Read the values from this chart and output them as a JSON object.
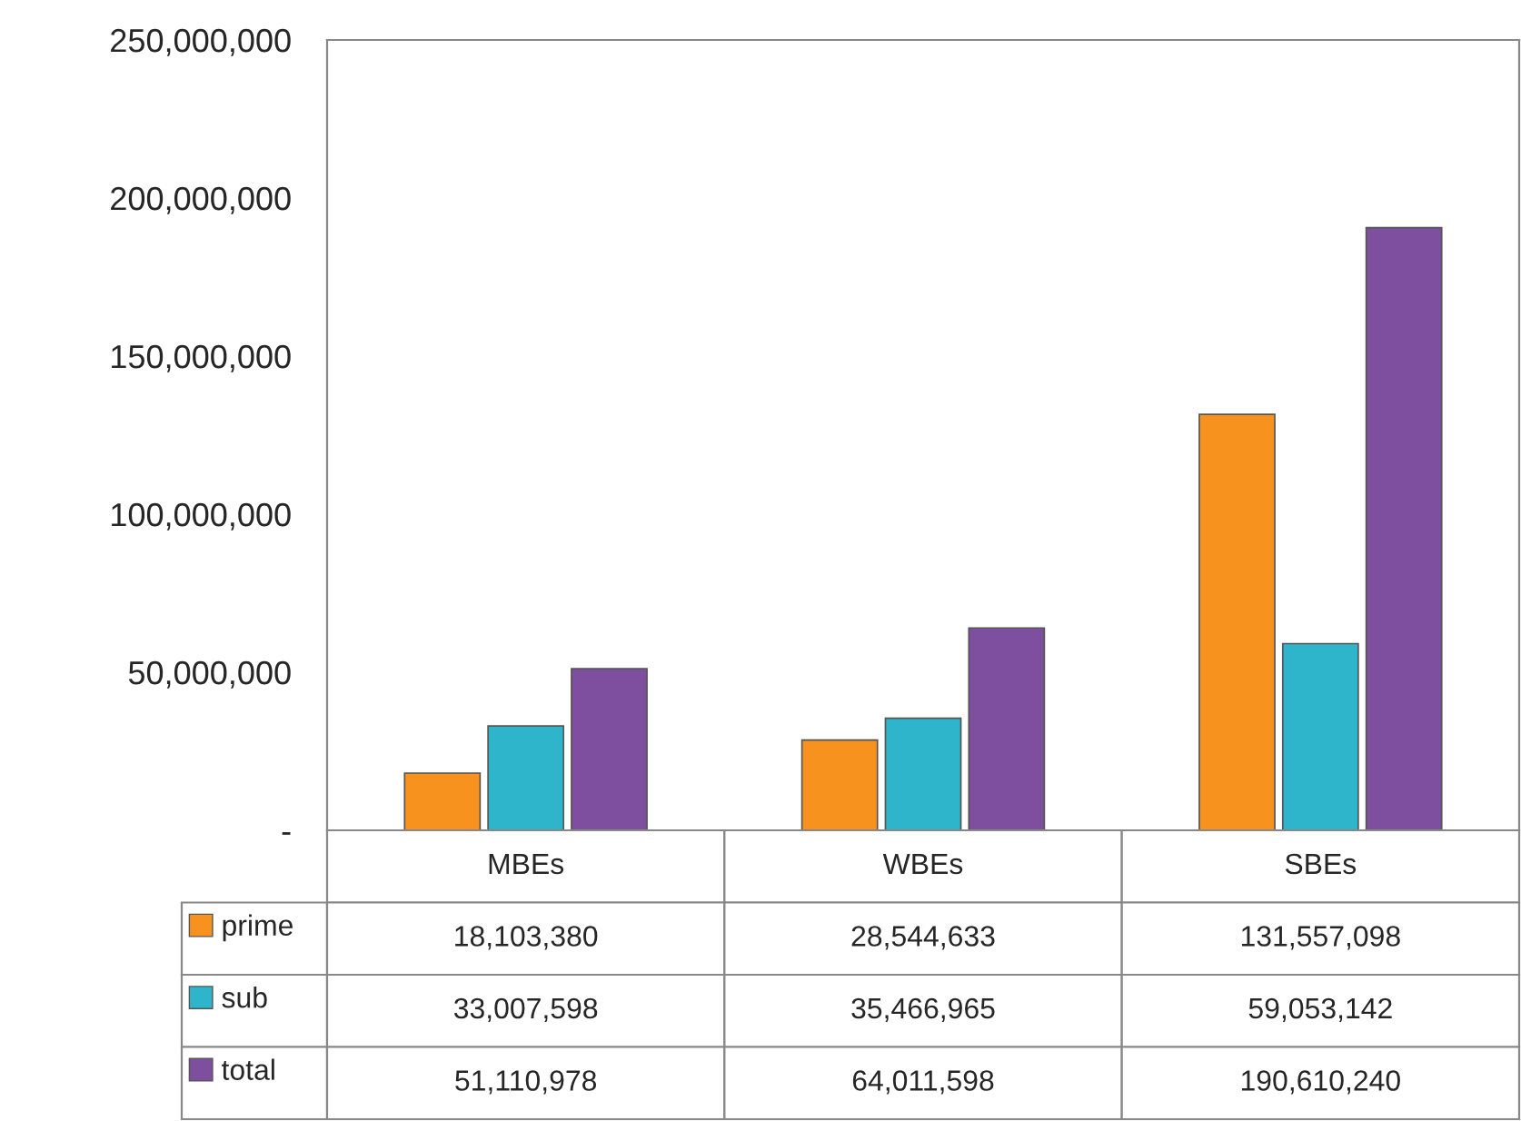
{
  "chart_data": {
    "type": "bar",
    "categories": [
      "MBEs",
      "WBEs",
      "SBEs"
    ],
    "series": [
      {
        "name": "prime",
        "color": "#f7921e",
        "values": [
          18103380,
          28544633,
          131557098
        ],
        "value_labels": [
          "18,103,380",
          "28,544,633",
          "131,557,098"
        ]
      },
      {
        "name": "sub",
        "color": "#2fb5cb",
        "values": [
          33007598,
          35466965,
          59053142
        ],
        "value_labels": [
          "33,007,598",
          "35,466,965",
          "59,053,142"
        ]
      },
      {
        "name": "total",
        "color": "#7e4f9e",
        "values": [
          51110978,
          64011598,
          190610240
        ],
        "value_labels": [
          "51,110,978",
          "64,011,598",
          "190,610,240"
        ]
      }
    ],
    "ylim": [
      0,
      250000000
    ],
    "yticks": [
      {
        "value": 0,
        "label": "-"
      },
      {
        "value": 50000000,
        "label": "50,000,000"
      },
      {
        "value": 100000000,
        "label": "100,000,000"
      },
      {
        "value": 150000000,
        "label": "150,000,000"
      },
      {
        "value": 200000000,
        "label": "200,000,000"
      },
      {
        "value": 250000000,
        "label": "250,000,000"
      }
    ],
    "grid": false,
    "legend": "bottom left"
  }
}
